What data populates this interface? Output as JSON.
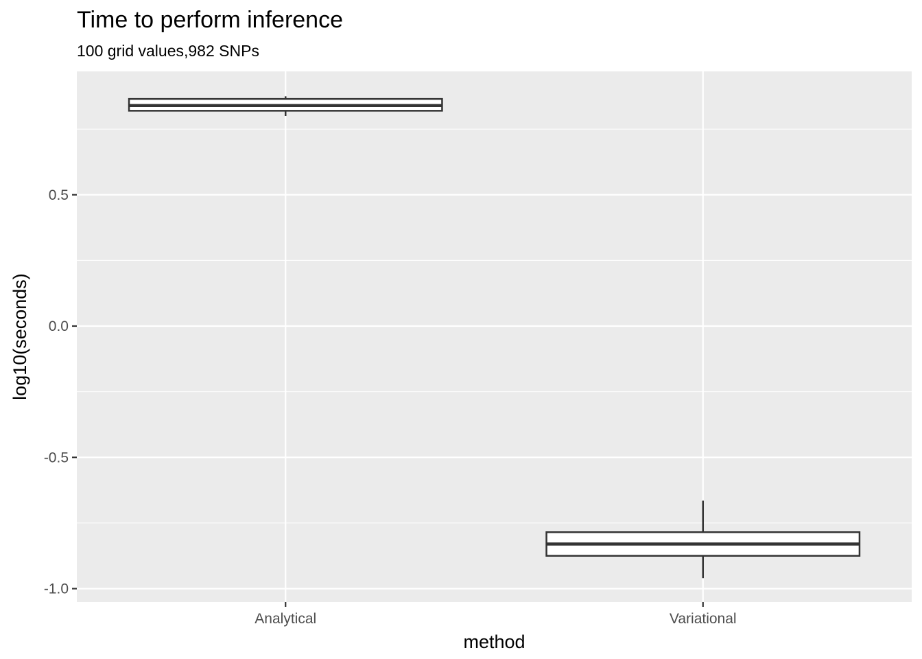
{
  "chart_data": {
    "type": "boxplot",
    "title": "Time to perform inference",
    "subtitle": "100 grid values,982 SNPs",
    "xlabel": "method",
    "ylabel": "log10(seconds)",
    "categories": [
      "Analytical",
      "Variational"
    ],
    "ylim": [
      -1.05,
      0.95
    ],
    "yticks": [
      -1.0,
      -0.5,
      0.0,
      0.5
    ],
    "ytick_labels": [
      "-1.0",
      "-0.5",
      "0.0",
      "0.5"
    ],
    "boxes": [
      {
        "category": "Analytical",
        "whisker_low": 0.8,
        "q1": 0.82,
        "median": 0.84,
        "q3": 0.865,
        "whisker_high": 0.875
      },
      {
        "category": "Variational",
        "whisker_low": -0.96,
        "q1": -0.875,
        "median": -0.83,
        "q3": -0.785,
        "whisker_high": -0.665
      }
    ],
    "grid": true,
    "colors": {
      "panel": "#ebebeb",
      "grid": "#ffffff",
      "box_line": "#333333",
      "box_fill": "#ffffff"
    }
  }
}
